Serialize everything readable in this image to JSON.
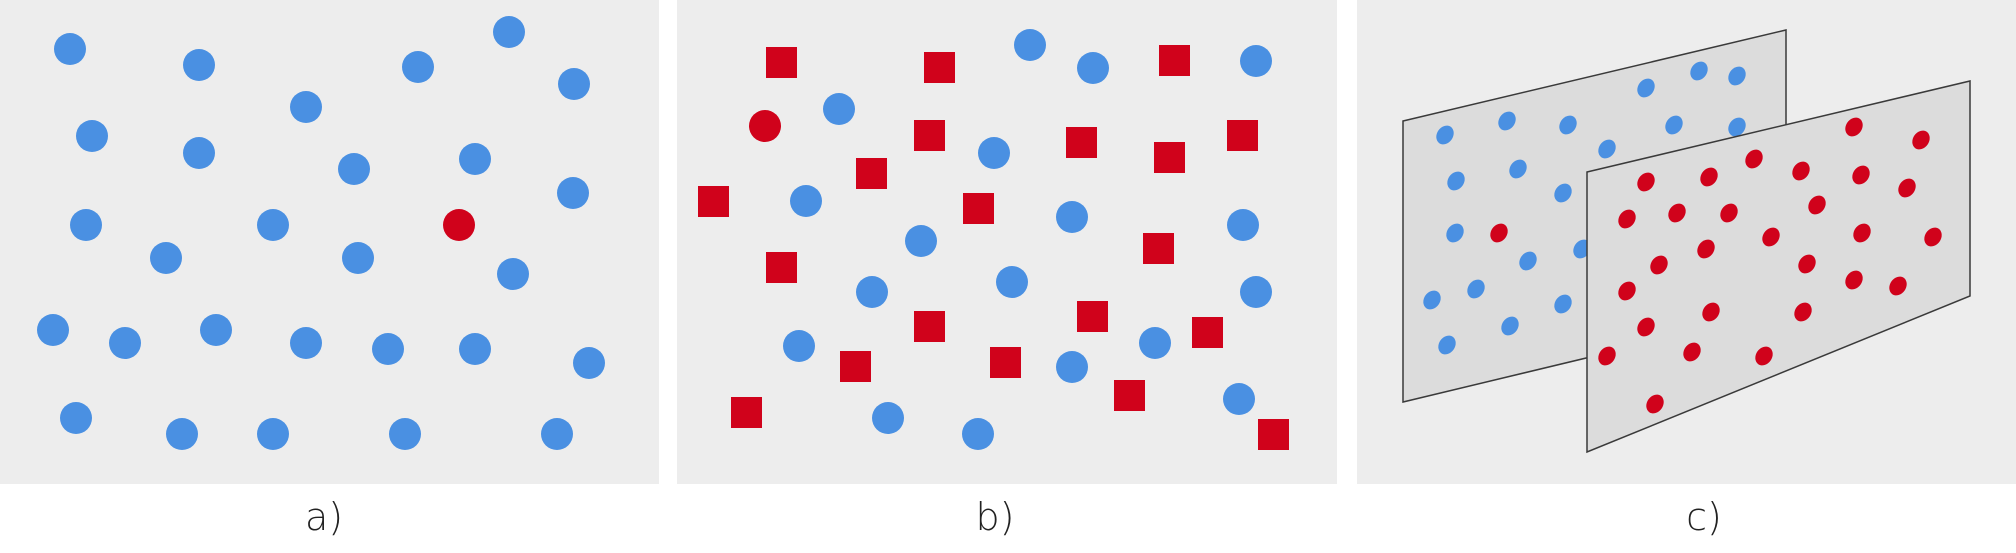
{
  "figure": {
    "colors": {
      "panel_background": "#ededed",
      "blue": "#4a90e2",
      "red": "#d0021b",
      "plane_fill": "#dcdcdc",
      "plane_stroke": "#3a3a3a"
    },
    "panels": [
      {
        "id": "a",
        "label": "a)"
      },
      {
        "id": "b",
        "label": "b)"
      },
      {
        "id": "c",
        "label": "c)"
      }
    ]
  }
}
